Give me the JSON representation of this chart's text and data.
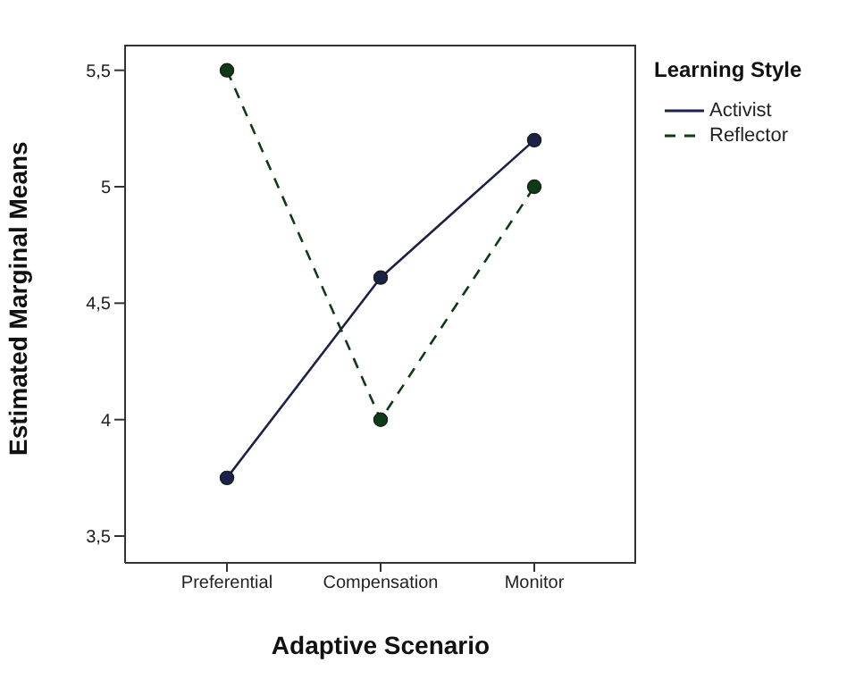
{
  "chart_data": {
    "type": "line",
    "xlabel": "Adaptive Scenario",
    "ylabel": "Estimated Marginal Means",
    "legend_title": "Learning Style",
    "legend": "right",
    "marker": "circle",
    "grid": false,
    "categories": [
      "Preferential",
      "Compensation",
      "Monitor"
    ],
    "ylim": [
      3.385,
      5.61
    ],
    "yticks": [
      {
        "value": 3.5,
        "label": "3,5"
      },
      {
        "value": 4,
        "label": "4"
      },
      {
        "value": 4.5,
        "label": "4,5"
      },
      {
        "value": 5,
        "label": "5"
      },
      {
        "value": 5.5,
        "label": "5,5"
      }
    ],
    "series": [
      {
        "name": "Activist",
        "color": "#1c2148",
        "line_style": "solid",
        "values": [
          3.75,
          4.61,
          5.2
        ]
      },
      {
        "name": "Reflector",
        "color": "#0f3a16",
        "line_style": "dashed",
        "values": [
          5.5,
          4.0,
          5.0
        ]
      }
    ]
  }
}
